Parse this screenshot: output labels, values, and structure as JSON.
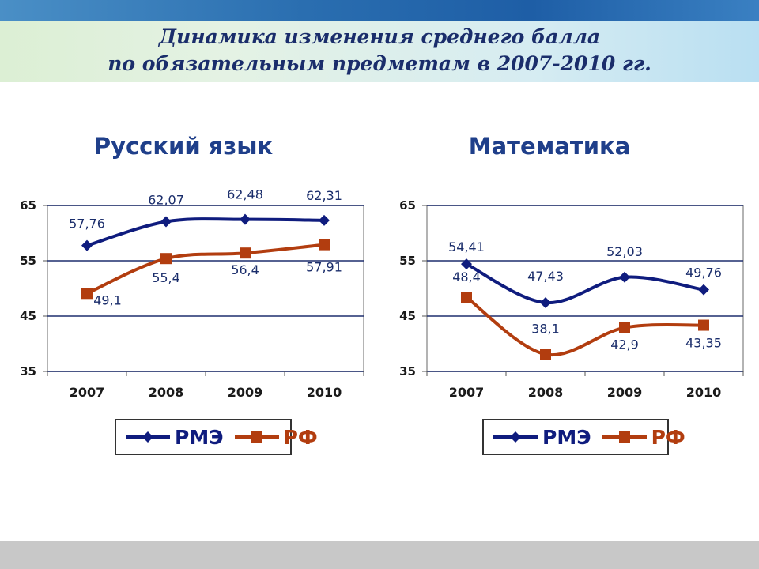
{
  "slide": {
    "title_line1": "Динамика изменения среднего балла",
    "title_line2": "по обязательным предметам в 2007-2010 гг."
  },
  "colors": {
    "rme": "#0f1c7e",
    "rf": "#b23d0f",
    "title": "#1f3f8a",
    "grid": "#1f2f6f"
  },
  "chart_data": [
    {
      "type": "line",
      "title": "Русский язык",
      "categories": [
        "2007",
        "2008",
        "2009",
        "2010"
      ],
      "yticks": [
        "65",
        "55",
        "45",
        "35"
      ],
      "ylim": [
        35,
        65
      ],
      "grid": true,
      "legend_position": "bottom",
      "series": [
        {
          "name": "РМЭ",
          "marker": "diamond",
          "color": "#0f1c7e",
          "values": [
            57.76,
            62.07,
            62.48,
            62.31
          ],
          "labels": [
            "57,76",
            "62,07",
            "62,48",
            "62,31"
          ]
        },
        {
          "name": "РФ",
          "marker": "square",
          "color": "#b23d0f",
          "values": [
            49.1,
            55.4,
            56.4,
            57.91
          ],
          "labels": [
            "49,1",
            "55,4",
            "56,4",
            "57,91"
          ]
        }
      ]
    },
    {
      "type": "line",
      "title": "Математика",
      "categories": [
        "2007",
        "2008",
        "2009",
        "2010"
      ],
      "yticks": [
        "65",
        "55",
        "45",
        "35"
      ],
      "ylim": [
        35,
        65
      ],
      "grid": true,
      "legend_position": "bottom",
      "series": [
        {
          "name": "РМЭ",
          "marker": "diamond",
          "color": "#0f1c7e",
          "values": [
            54.41,
            47.43,
            52.03,
            49.76
          ],
          "labels": [
            "54,41",
            "47,43",
            "52,03",
            "49,76"
          ]
        },
        {
          "name": "РФ",
          "marker": "square",
          "color": "#b23d0f",
          "values": [
            48.4,
            38.1,
            42.9,
            43.35
          ],
          "labels": [
            "48,4",
            "38,1",
            "42,9",
            "43,35"
          ]
        }
      ]
    }
  ]
}
